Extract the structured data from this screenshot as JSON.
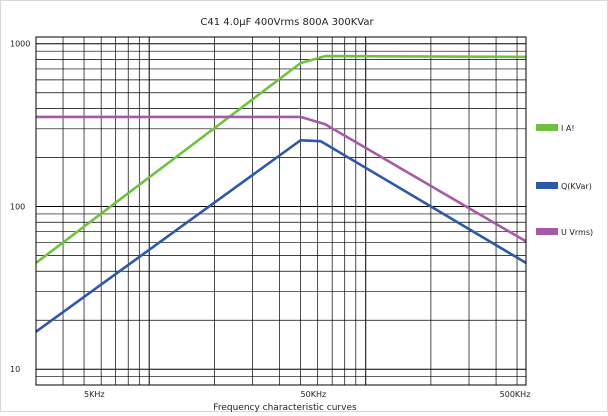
{
  "chart_data": {
    "type": "line",
    "title": "C41   4.0μF    400Vrms    800A    300KVar",
    "xlabel": "Frequency characteristic curves",
    "ylabel": "",
    "x_scale": "log",
    "y_scale": "log",
    "xlim": [
      3000,
      550000
    ],
    "ylim": [
      8,
      1100
    ],
    "x_ticks": [
      {
        "value": 5000,
        "label": "5KHz"
      },
      {
        "value": 50000,
        "label": "50KHz"
      },
      {
        "value": 500000,
        "label": "500KHz"
      }
    ],
    "y_ticks": [
      {
        "value": 10,
        "label": "10"
      },
      {
        "value": 100,
        "label": "100"
      },
      {
        "value": 1000,
        "label": "1000"
      }
    ],
    "grid": true,
    "legend_position": "right",
    "series": [
      {
        "name": "I    A!",
        "color": "#6fc23e",
        "points": [
          [
            3000,
            45
          ],
          [
            50000,
            760
          ],
          [
            65000,
            840
          ],
          [
            550000,
            830
          ]
        ]
      },
      {
        "name": "Q(KVar)",
        "color": "#2d5aa8",
        "points": [
          [
            3000,
            17
          ],
          [
            50000,
            255
          ],
          [
            62000,
            252
          ],
          [
            550000,
            45
          ]
        ]
      },
      {
        "name": "U    Vrms)",
        "color": "#a659a8",
        "points": [
          [
            3000,
            355
          ],
          [
            50000,
            355
          ],
          [
            65000,
            320
          ],
          [
            550000,
            61
          ]
        ]
      }
    ]
  }
}
